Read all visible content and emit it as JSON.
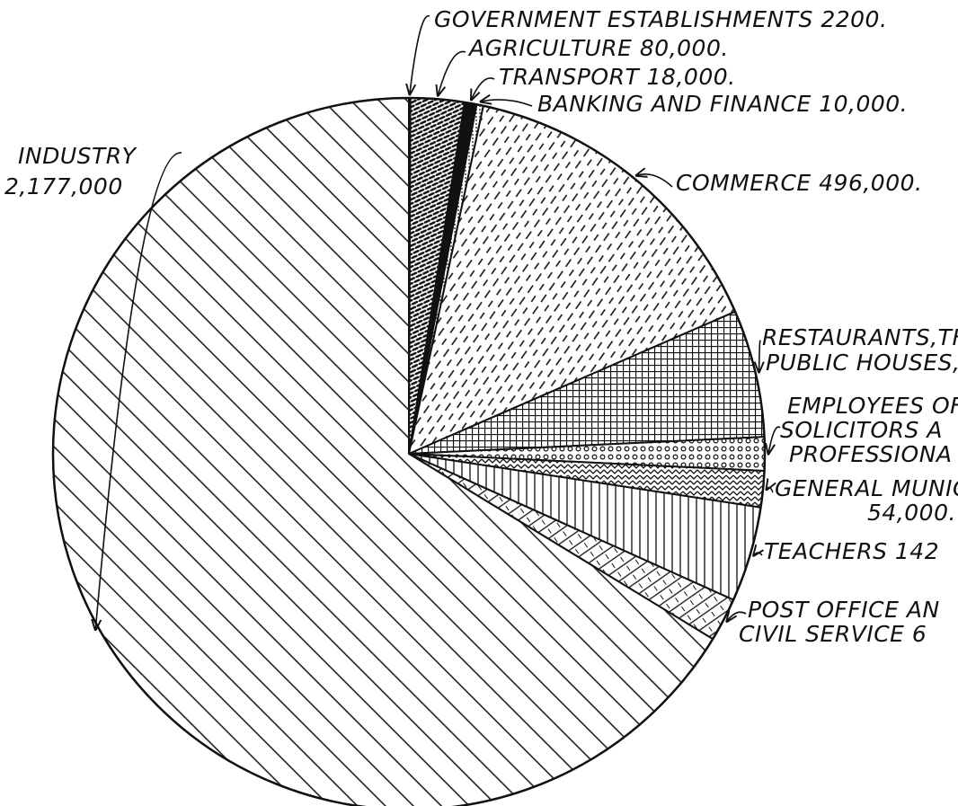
{
  "chart_data": {
    "type": "pie",
    "color": "#111111",
    "categories": [
      [
        "GOVERNMENT ESTABLISHMENTS 2200."
      ],
      [
        "AGRICULTURE 80,000."
      ],
      [
        "TRANSPORT 18,000."
      ],
      [
        "BANKING AND FINANCE 10,000."
      ],
      [
        "COMMERCE 496,000."
      ],
      [
        "RESTAURANTS,TH",
        "PUBLIC HOUSES,"
      ],
      [
        "EMPLOYEES OF",
        "SOLICITORS A",
        "PROFESSIONA"
      ],
      [
        "GENERAL MUNIC",
        "54,000."
      ],
      [
        "TEACHERS 142"
      ],
      [
        "POST OFFICE AN",
        "CIVIL SERVICE 6"
      ],
      [
        "INDUSTRY",
        "2,177,000"
      ]
    ],
    "values": [
      2200,
      80000,
      18000,
      10000,
      496000,
      190000,
      50000,
      54000,
      142000,
      65000,
      2177000
    ]
  }
}
